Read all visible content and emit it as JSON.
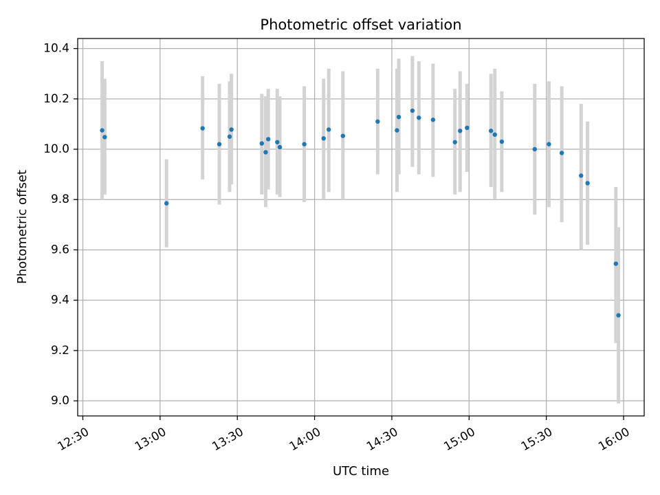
{
  "chart_data": {
    "type": "scatter",
    "title": "Photometric offset variation",
    "xlabel": "UTC time",
    "ylabel": "Photometric offset",
    "xlim": [
      "12:28",
      "16:08"
    ],
    "ylim": [
      8.94,
      10.44
    ],
    "x_ticks": [
      "12:30",
      "13:00",
      "13:30",
      "14:00",
      "14:30",
      "15:00",
      "15:30",
      "16:00"
    ],
    "y_ticks": [
      9.0,
      9.2,
      9.4,
      9.6,
      9.8,
      10.0,
      10.2,
      10.4
    ],
    "y_tick_labels": [
      "9.0",
      "9.2",
      "9.4",
      "9.6",
      "9.8",
      "10.0",
      "10.2",
      "10.4"
    ],
    "grid": true,
    "colors": {
      "point": "#1f77b4",
      "errorbar": "#d3d3d3",
      "grid": "#b0b0b0",
      "axis": "#000000"
    },
    "points": [
      {
        "t": "12:37.5",
        "y": 10.075,
        "lo": 9.8,
        "hi": 10.35
      },
      {
        "t": "12:38.5",
        "y": 10.048,
        "lo": 9.82,
        "hi": 10.28
      },
      {
        "t": "13:02.5",
        "y": 9.785,
        "lo": 9.61,
        "hi": 9.96
      },
      {
        "t": "13:16.5",
        "y": 10.083,
        "lo": 9.88,
        "hi": 10.29
      },
      {
        "t": "13:23.0",
        "y": 10.02,
        "lo": 9.78,
        "hi": 10.26
      },
      {
        "t": "13:27.0",
        "y": 10.05,
        "lo": 9.83,
        "hi": 10.27
      },
      {
        "t": "13:27.7",
        "y": 10.078,
        "lo": 9.86,
        "hi": 10.3
      },
      {
        "t": "13:39.5",
        "y": 10.023,
        "lo": 9.82,
        "hi": 10.22
      },
      {
        "t": "13:41.0",
        "y": 9.988,
        "lo": 9.77,
        "hi": 10.21
      },
      {
        "t": "13:42.0",
        "y": 10.04,
        "lo": 9.84,
        "hi": 10.24
      },
      {
        "t": "13:45.5",
        "y": 10.028,
        "lo": 9.82,
        "hi": 10.24
      },
      {
        "t": "13:46.5",
        "y": 10.008,
        "lo": 9.81,
        "hi": 10.21
      },
      {
        "t": "13:56.0",
        "y": 10.02,
        "lo": 9.79,
        "hi": 10.25
      },
      {
        "t": "14:03.5",
        "y": 10.043,
        "lo": 9.8,
        "hi": 10.28
      },
      {
        "t": "14:05.5",
        "y": 10.078,
        "lo": 9.83,
        "hi": 10.32
      },
      {
        "t": "14:11.0",
        "y": 10.053,
        "lo": 9.8,
        "hi": 10.31
      },
      {
        "t": "14:24.5",
        "y": 10.11,
        "lo": 9.9,
        "hi": 10.32
      },
      {
        "t": "14:32.0",
        "y": 10.075,
        "lo": 9.83,
        "hi": 10.32
      },
      {
        "t": "14:32.7",
        "y": 10.128,
        "lo": 9.9,
        "hi": 10.36
      },
      {
        "t": "14:38.0",
        "y": 10.153,
        "lo": 9.93,
        "hi": 10.37
      },
      {
        "t": "14:40.5",
        "y": 10.125,
        "lo": 9.9,
        "hi": 10.35
      },
      {
        "t": "14:46.0",
        "y": 10.117,
        "lo": 9.89,
        "hi": 10.34
      },
      {
        "t": "14:54.5",
        "y": 10.028,
        "lo": 9.82,
        "hi": 10.24
      },
      {
        "t": "14:56.5",
        "y": 10.073,
        "lo": 9.83,
        "hi": 10.31
      },
      {
        "t": "14:59.2",
        "y": 10.085,
        "lo": 9.91,
        "hi": 10.26
      },
      {
        "t": "15:08.5",
        "y": 10.073,
        "lo": 9.85,
        "hi": 10.3
      },
      {
        "t": "15:10.0",
        "y": 10.058,
        "lo": 9.8,
        "hi": 10.32
      },
      {
        "t": "15:12.7",
        "y": 10.03,
        "lo": 9.83,
        "hi": 10.23
      },
      {
        "t": "15:25.5",
        "y": 10.0,
        "lo": 9.74,
        "hi": 10.26
      },
      {
        "t": "15:31.0",
        "y": 10.02,
        "lo": 9.77,
        "hi": 10.27
      },
      {
        "t": "15:36.0",
        "y": 9.985,
        "lo": 9.71,
        "hi": 10.25
      },
      {
        "t": "15:43.5",
        "y": 9.895,
        "lo": 9.6,
        "hi": 10.18
      },
      {
        "t": "15:46.0",
        "y": 9.865,
        "lo": 9.62,
        "hi": 10.11
      },
      {
        "t": "15:57.0",
        "y": 9.545,
        "lo": 9.23,
        "hi": 9.85
      },
      {
        "t": "15:58.0",
        "y": 9.34,
        "lo": 8.99,
        "hi": 9.69
      }
    ]
  }
}
